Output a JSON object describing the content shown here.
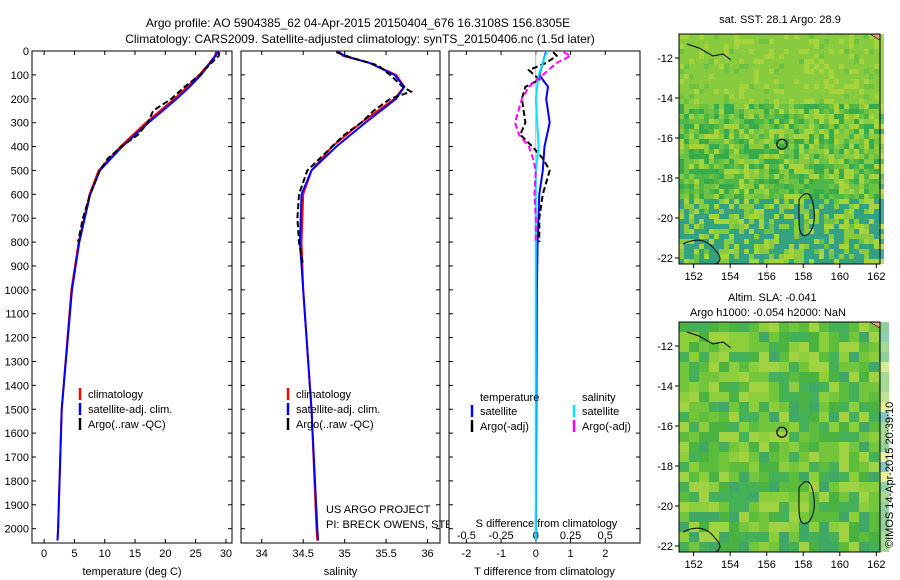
{
  "header": {
    "line1": "Argo profile: AO 5904385_62 04-Apr-2015 20150404_676 16.3108S 156.8305E",
    "line2": "Climatology: CARS2009. Satellite-adjusted climatology: synTS_20150406.nc (1.5d later)"
  },
  "colors": {
    "climatology": "#ff0000",
    "satellite": "#0000ff",
    "argo": "#000000",
    "sal_satellite": "#00e5ff",
    "sal_argo": "#ff00ff"
  },
  "depth_ticks": [
    "0",
    "100",
    "200",
    "300",
    "400",
    "500",
    "600",
    "700",
    "800",
    "900",
    "1000",
    "1100",
    "1200",
    "1300",
    "1400",
    "1500",
    "1600",
    "1700",
    "1800",
    "1900",
    "2000"
  ],
  "chart_data": [
    {
      "type": "line",
      "name": "temperature-profile",
      "xlabel": "temperature (deg C)",
      "ylabel": "",
      "xlim": [
        -2,
        31
      ],
      "ylim": [
        2060,
        0
      ],
      "x_ticks": [
        "0",
        "5",
        "10",
        "15",
        "20",
        "25",
        "30"
      ],
      "x_tick_values": [
        0,
        5,
        10,
        15,
        20,
        25,
        30
      ],
      "legend": {
        "items": [
          "climatology",
          "satellite-adj. clim.",
          "Argo(..raw -QC)"
        ]
      },
      "series": [
        {
          "name": "climatology",
          "color": "#ff0000",
          "depth": [
            0,
            20,
            50,
            100,
            150,
            200,
            300,
            400,
            500,
            600,
            800,
            1000,
            1500,
            2000,
            2050
          ],
          "values": [
            28.4,
            28.2,
            27.3,
            25.6,
            23.6,
            21.5,
            16.8,
            12.6,
            9.0,
            7.5,
            5.7,
            4.5,
            2.9,
            2.3,
            2.2
          ]
        },
        {
          "name": "satellite-adj. clim.",
          "color": "#0000ff",
          "depth": [
            0,
            20,
            50,
            100,
            150,
            200,
            300,
            400,
            500,
            600,
            800,
            1000,
            1500,
            2000,
            2050
          ],
          "values": [
            28.7,
            28.3,
            27.4,
            25.9,
            24.0,
            21.9,
            17.2,
            12.9,
            9.2,
            7.6,
            5.8,
            4.6,
            2.9,
            2.3,
            2.2
          ]
        },
        {
          "name": "Argo(..raw -QC)",
          "color": "#000000",
          "depth": [
            5,
            20,
            50,
            100,
            150,
            200,
            250,
            300,
            350,
            400,
            450,
            500,
            600,
            700,
            800
          ],
          "values": [
            28.9,
            28.8,
            27.6,
            25.7,
            23.2,
            21.0,
            18.0,
            17.1,
            15.5,
            12.8,
            10.5,
            9.2,
            7.6,
            6.4,
            5.6
          ]
        }
      ]
    },
    {
      "type": "line",
      "name": "salinity-profile",
      "xlabel": "salinity",
      "xlim": [
        33.75,
        36.15
      ],
      "ylim": [
        2060,
        0
      ],
      "x_ticks": [
        "34",
        "34.5",
        "35",
        "35.5",
        "36"
      ],
      "x_tick_values": [
        34,
        34.5,
        35,
        35.5,
        36
      ],
      "legend": {
        "items": [
          "climatology",
          "satellite-adj. clim.",
          "Argo(..raw -QC)"
        ]
      },
      "annotation": [
        "US ARGO PROJECT",
        "PI: BRECK OWENS, STEVE JAYNE, P.E. ROBBINS"
      ],
      "series": [
        {
          "name": "climatology",
          "color": "#ff0000",
          "depth": [
            0,
            20,
            50,
            100,
            150,
            200,
            300,
            400,
            500,
            600,
            800,
            1000,
            1500,
            2000,
            2050
          ],
          "values": [
            34.92,
            34.98,
            35.3,
            35.62,
            35.72,
            35.6,
            35.2,
            34.85,
            34.6,
            34.5,
            34.48,
            34.5,
            34.6,
            34.66,
            34.67
          ]
        },
        {
          "name": "satellite-adj. clim.",
          "color": "#0000ff",
          "depth": [
            0,
            20,
            50,
            100,
            150,
            200,
            300,
            400,
            500,
            600,
            800,
            1000,
            1500,
            2000,
            2050
          ],
          "values": [
            34.9,
            35.0,
            35.3,
            35.6,
            35.72,
            35.62,
            35.25,
            34.9,
            34.6,
            34.48,
            34.46,
            34.5,
            34.6,
            34.67,
            34.68
          ]
        },
        {
          "name": "Argo(..raw -QC)",
          "color": "#000000",
          "depth": [
            5,
            30,
            60,
            100,
            150,
            170,
            200,
            250,
            300,
            350,
            400,
            450,
            500,
            600,
            700,
            800,
            900
          ],
          "values": [
            34.9,
            35.1,
            35.4,
            35.55,
            35.7,
            35.8,
            35.55,
            35.35,
            35.2,
            35.0,
            34.85,
            34.7,
            34.55,
            34.45,
            34.43,
            34.45,
            34.5
          ]
        }
      ]
    },
    {
      "type": "line",
      "name": "difference-profile",
      "xlabel": "T difference from climatology",
      "top_label": "S difference from climatology",
      "xlim": [
        -2.5,
        3.0
      ],
      "ylim": [
        2060,
        0
      ],
      "x_ticks": [
        "-2",
        "-1",
        "0",
        "1",
        "2"
      ],
      "x_tick_values": [
        -2,
        -1,
        0,
        1,
        2
      ],
      "s_ticks": [
        "-0.5",
        "-0.25",
        "0",
        "0.25",
        "0.5"
      ],
      "s_tick_values": [
        -0.5,
        -0.25,
        0,
        0.25,
        0.5
      ],
      "legend": {
        "temp_header": "temperature",
        "sal_header": "salinity",
        "items": [
          "satellite",
          "Argo(-adj)",
          "satellite",
          "Argo(-adj)"
        ]
      },
      "series": [
        {
          "name": "T satellite",
          "color": "#0000ff",
          "depth": [
            0,
            50,
            100,
            150,
            200,
            300,
            400,
            500,
            600,
            800,
            1000,
            2050
          ],
          "values": [
            0.3,
            0.2,
            0.1,
            0.35,
            0.3,
            0.4,
            0.25,
            0.2,
            0.1,
            0.05,
            0.03,
            0.0
          ]
        },
        {
          "name": "T Argo(-adj)",
          "color": "#000000",
          "depth": [
            5,
            20,
            50,
            80,
            120,
            150,
            200,
            300,
            350,
            400,
            450,
            500,
            600,
            700,
            800
          ],
          "values": [
            0.5,
            0.6,
            0.3,
            -0.2,
            0.1,
            -0.3,
            -0.4,
            -0.3,
            -0.45,
            -0.1,
            0.2,
            0.4,
            0.2,
            0.1,
            0.1
          ]
        },
        {
          "name": "S satellite",
          "color": "#00e5ff",
          "depth": [
            0,
            50,
            100,
            150,
            200,
            300,
            400,
            500,
            600,
            800,
            1000,
            2050
          ],
          "values": [
            0.08,
            0.05,
            0.02,
            0.01,
            0.0,
            0.01,
            0.02,
            0.0,
            0.0,
            0.0,
            0.0,
            0.0
          ]
        },
        {
          "name": "S Argo(-adj)",
          "color": "#ff00ff",
          "depth": [
            5,
            20,
            50,
            100,
            150,
            200,
            300,
            350,
            400,
            450,
            500,
            600,
            700,
            800
          ],
          "values": [
            0.2,
            0.25,
            0.15,
            0.05,
            -0.05,
            -0.1,
            -0.15,
            -0.12,
            -0.05,
            -0.02,
            0.0,
            -0.01,
            0.0,
            0.0
          ]
        }
      ]
    },
    {
      "type": "heatmap",
      "name": "sst-map",
      "title": "sat. SST: 28.1 Argo: 28.9",
      "x_ticks": [
        "152",
        "154",
        "156",
        "158",
        "160",
        "162"
      ],
      "x_tick_values": [
        152,
        154,
        156,
        158,
        160,
        162
      ],
      "y_ticks": [
        "-12",
        "-14",
        "-16",
        "-18",
        "-20",
        "-22"
      ],
      "y_tick_values": [
        -12,
        -14,
        -16,
        -18,
        -20,
        -22
      ],
      "xlim": [
        151.2,
        162.2
      ],
      "ylim": [
        -22.3,
        -10.8
      ],
      "marker": {
        "lon": 156.83,
        "lat": -16.31
      }
    },
    {
      "type": "heatmap",
      "name": "sla-map",
      "title_line1": "Altim. SLA: -0.041",
      "title_line2": "Argo h1000: -0.054 h2000: NaN",
      "x_ticks": [
        "152",
        "154",
        "156",
        "158",
        "160",
        "162"
      ],
      "x_tick_values": [
        152,
        154,
        156,
        158,
        160,
        162
      ],
      "y_ticks": [
        "-12",
        "-14",
        "-16",
        "-18",
        "-20",
        "-22"
      ],
      "y_tick_values": [
        -12,
        -14,
        -16,
        -18,
        -20,
        -22
      ],
      "xlim": [
        151.2,
        162.2
      ],
      "ylim": [
        -22.3,
        -10.8
      ],
      "marker": {
        "lon": 156.83,
        "lat": -16.31
      }
    }
  ],
  "timestamp": "©IMOS 14-Apr-2015 20:39:10"
}
